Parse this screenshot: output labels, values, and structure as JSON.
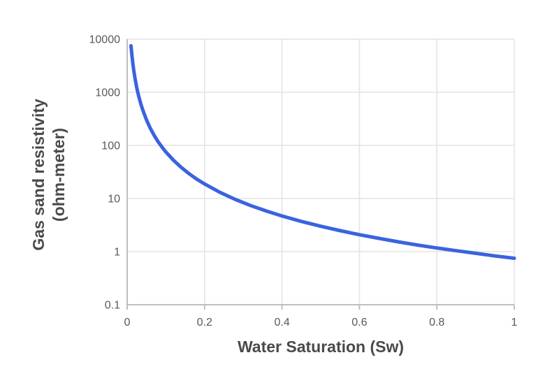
{
  "chart_data": {
    "type": "line",
    "xlabel": "Water Saturation (Sw)",
    "ylabel_line1": "Gas sand resistivity",
    "ylabel_line2": "(ohm-meter)",
    "x_scale": "linear",
    "y_scale": "log",
    "xlim": [
      0,
      1
    ],
    "ylim": [
      0.1,
      10000
    ],
    "grid": "both",
    "legend": "none",
    "x_ticks": [
      {
        "value": 0,
        "label": "0"
      },
      {
        "value": 0.2,
        "label": "0.2"
      },
      {
        "value": 0.4,
        "label": "0.4"
      },
      {
        "value": 0.6,
        "label": "0.6"
      },
      {
        "value": 0.8,
        "label": "0.8"
      },
      {
        "value": 1,
        "label": "1"
      }
    ],
    "y_ticks": [
      {
        "value": 10000,
        "label": "10000"
      },
      {
        "value": 1000,
        "label": "1000"
      },
      {
        "value": 100,
        "label": "100"
      },
      {
        "value": 10,
        "label": "10"
      },
      {
        "value": 1,
        "label": "1"
      },
      {
        "value": 0.1,
        "label": "0.1"
      }
    ],
    "series": [
      {
        "name": "Gas sand resistivity",
        "color": "#3a63df",
        "x": [
          0.01,
          0.0125,
          0.015,
          0.0175,
          0.02,
          0.025,
          0.03,
          0.035,
          0.04,
          0.05,
          0.06,
          0.07,
          0.08,
          0.09,
          0.1,
          0.12,
          0.14,
          0.16,
          0.18,
          0.2,
          0.24,
          0.28,
          0.32,
          0.36,
          0.4,
          0.45,
          0.5,
          0.55,
          0.6,
          0.65,
          0.7,
          0.75,
          0.8,
          0.85,
          0.9,
          0.95,
          1.0
        ],
        "y": [
          7500,
          4800,
          3333,
          2449,
          1875,
          1200,
          833,
          612,
          469,
          300,
          208,
          153,
          117,
          92.6,
          75,
          52.1,
          38.3,
          29.3,
          23.1,
          18.8,
          13.0,
          9.57,
          7.32,
          5.79,
          4.69,
          3.7,
          3.0,
          2.48,
          2.08,
          1.78,
          1.53,
          1.33,
          1.17,
          1.04,
          0.93,
          0.83,
          0.75
        ]
      }
    ],
    "style": {
      "background": "#ffffff",
      "grid_color": "#e4e4e4",
      "axis_color": "#bfbfbf",
      "tick_label_color": "#595959",
      "axis_title_color": "#4a4a4a"
    }
  }
}
